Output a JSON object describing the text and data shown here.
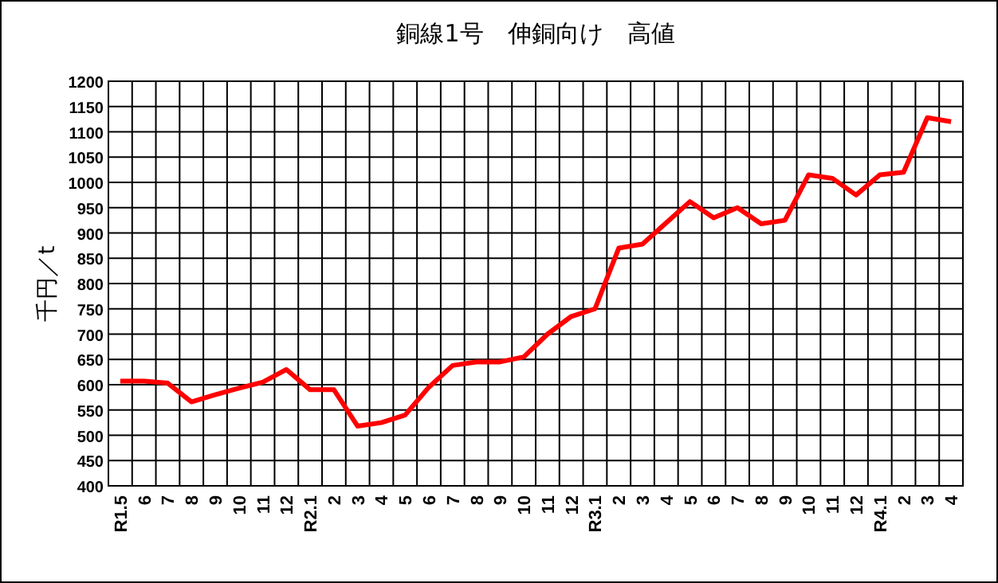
{
  "chart_data": {
    "type": "line",
    "title": "銅線1号　伸銅向け　高値",
    "ylabel": "千円／t",
    "categories": [
      "R1.5",
      "6",
      "7",
      "8",
      "9",
      "10",
      "11",
      "12",
      "R2.1",
      "2",
      "3",
      "4",
      "5",
      "6",
      "7",
      "8",
      "9",
      "10",
      "11",
      "12",
      "R3.1",
      "2",
      "3",
      "4",
      "5",
      "6",
      "7",
      "8",
      "9",
      "10",
      "11",
      "12",
      "R4.1",
      "2",
      "3",
      "4"
    ],
    "series": [
      {
        "color": "#ff0000",
        "values": [
          607,
          607,
          603,
          566,
          580,
          593,
          605,
          630,
          590,
          590,
          518,
          525,
          540,
          595,
          638,
          645,
          645,
          655,
          700,
          735,
          750,
          870,
          878,
          920,
          962,
          930,
          950,
          918,
          925,
          1015,
          1008,
          975,
          1015,
          1020,
          1128,
          1120
        ]
      }
    ],
    "ylim": [
      400,
      1200
    ],
    "yticks": [
      400,
      450,
      500,
      550,
      600,
      650,
      700,
      750,
      800,
      850,
      900,
      950,
      1000,
      1050,
      1100,
      1150,
      1200
    ],
    "grid": true,
    "marker": "none",
    "line_style": "solid"
  }
}
